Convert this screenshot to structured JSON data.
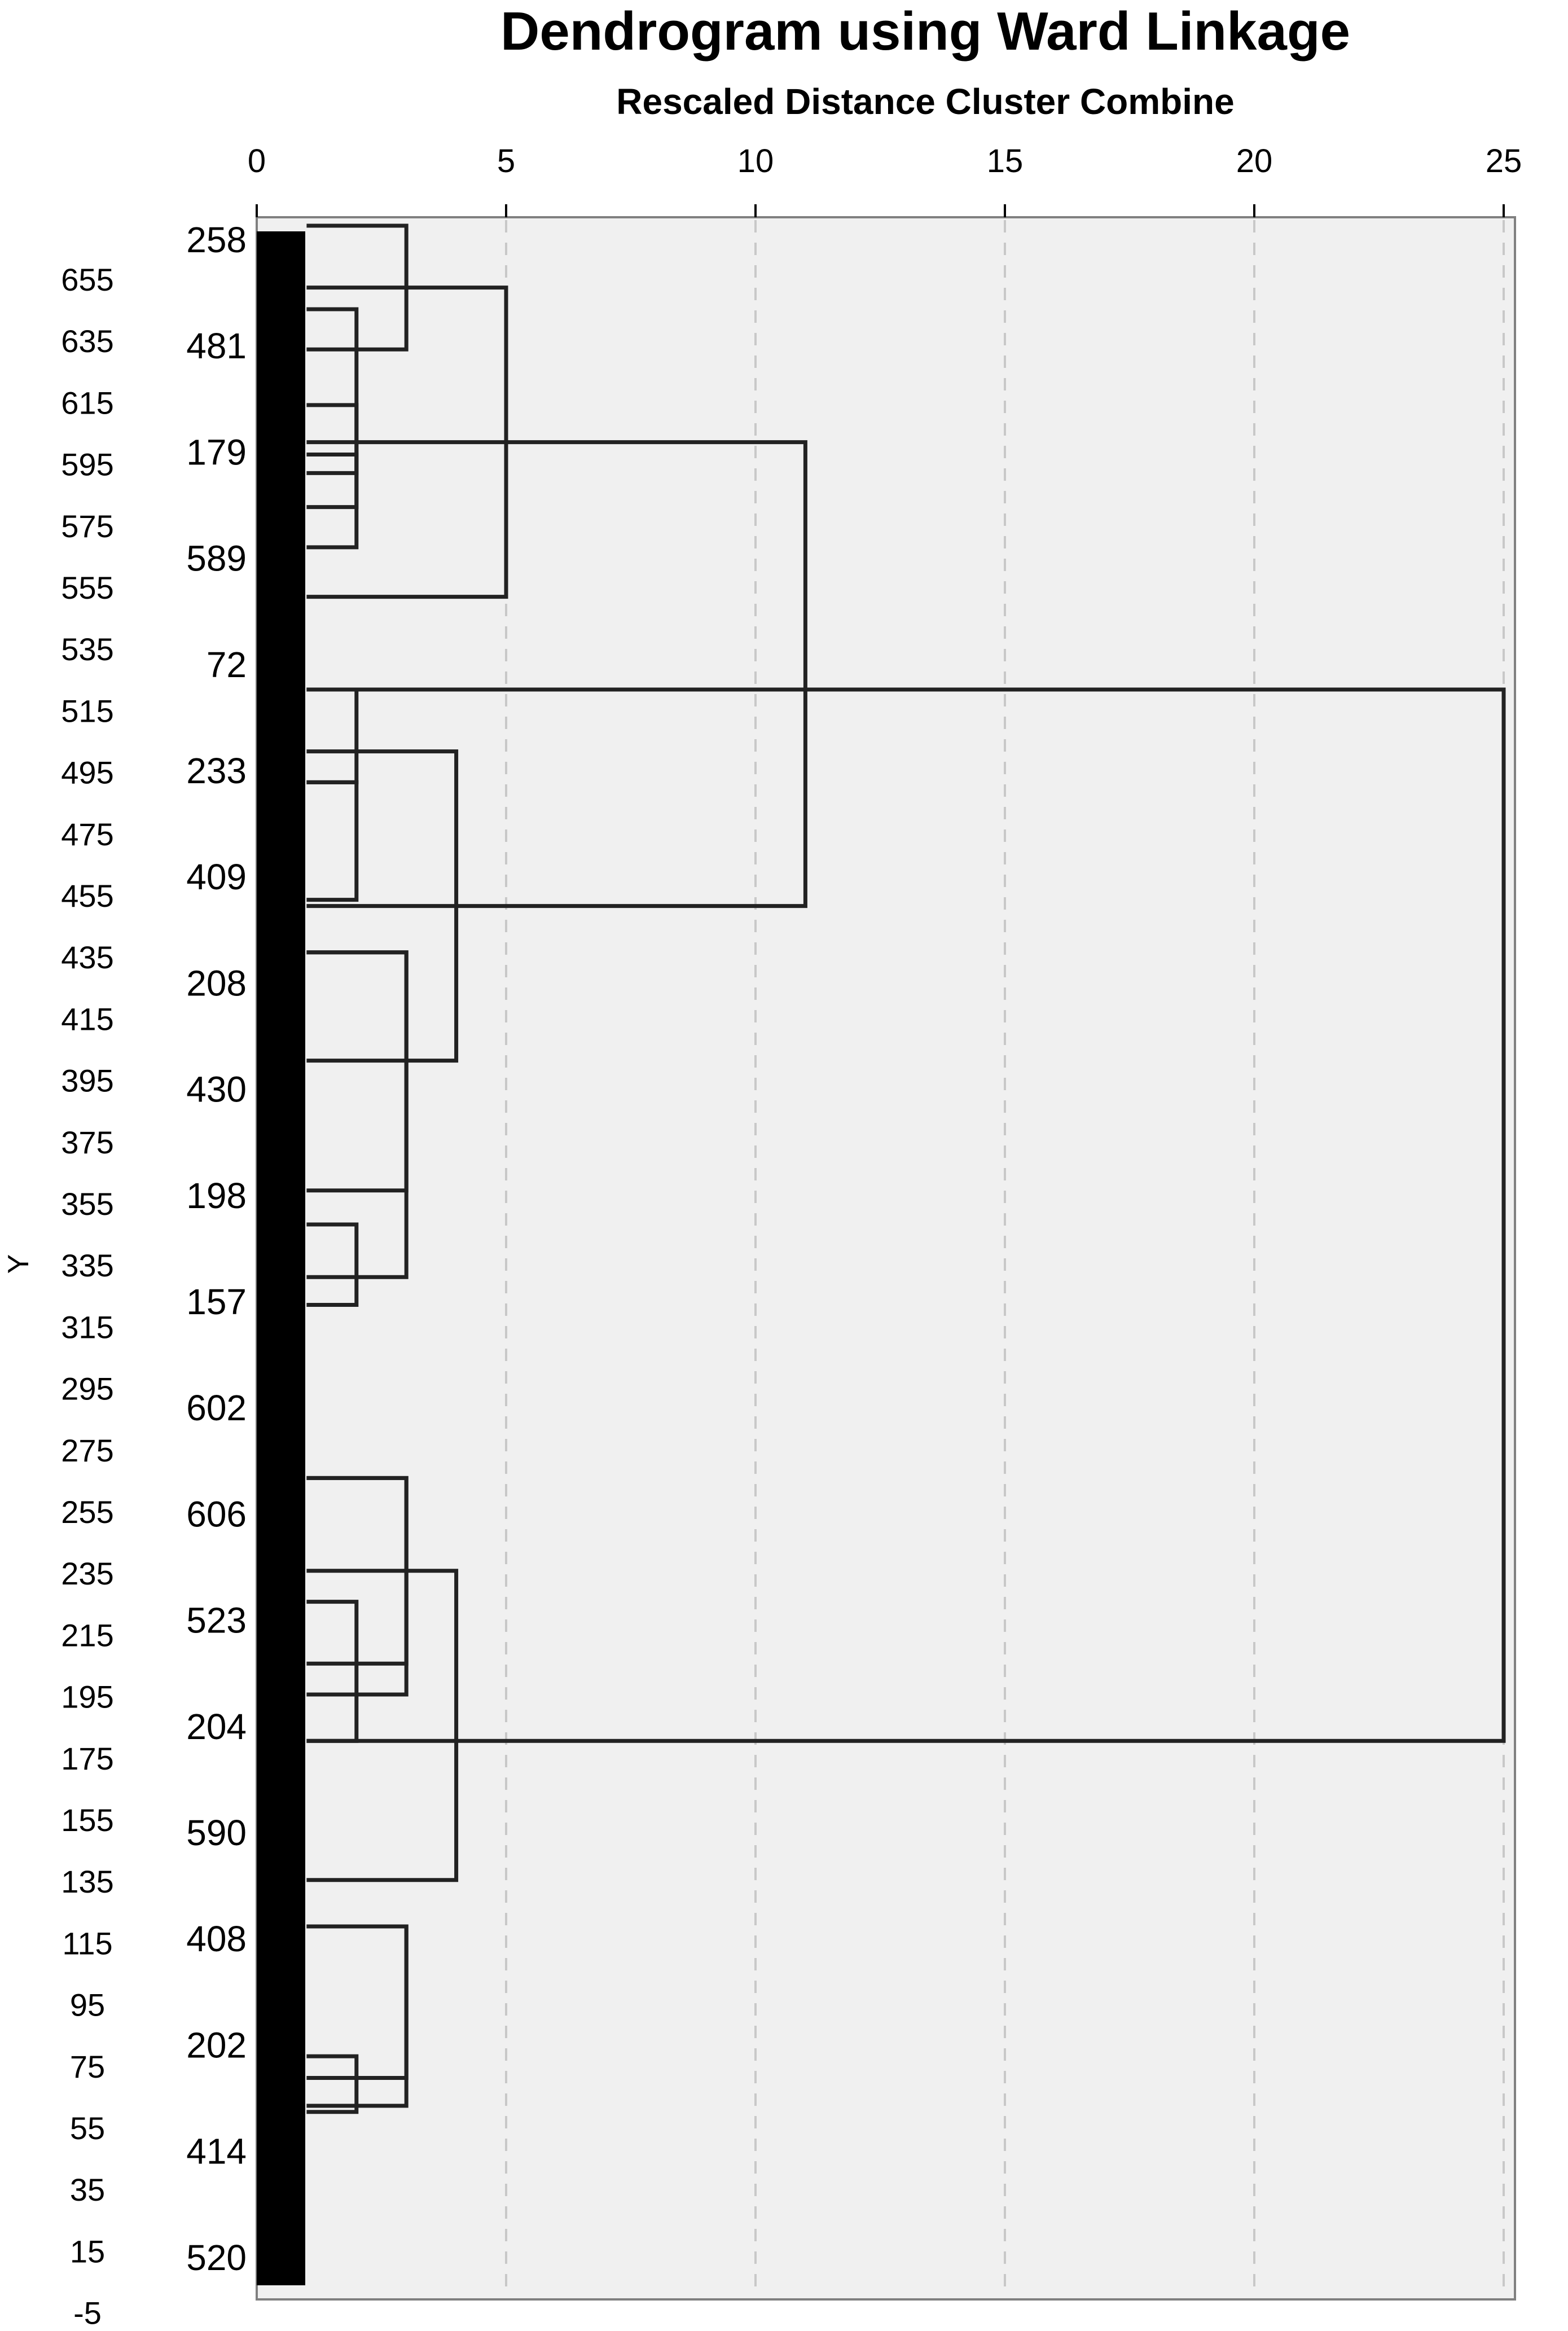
{
  "chart_data": {
    "type": "dendrogram",
    "title": "Dendrogram using Ward Linkage",
    "subtitle": "Rescaled Distance Cluster Combine",
    "ylabel": "Y",
    "xlim": [
      0,
      25
    ],
    "x_ticks": [
      "0",
      "5",
      "10",
      "15",
      "20",
      "25"
    ],
    "y_ticks": [
      "655",
      "635",
      "615",
      "595",
      "575",
      "555",
      "535",
      "515",
      "495",
      "475",
      "455",
      "435",
      "415",
      "395",
      "375",
      "355",
      "335",
      "315",
      "295",
      "275",
      "255",
      "235",
      "215",
      "195",
      "175",
      "155",
      "135",
      "115",
      "95",
      "75",
      "55",
      "35",
      "15",
      "-5"
    ],
    "leaf_labels": [
      "258",
      "481",
      "179",
      "589",
      "72",
      "233",
      "409",
      "208",
      "430",
      "198",
      "157",
      "602",
      "606",
      "523",
      "204",
      "590",
      "408",
      "202",
      "414",
      "520"
    ],
    "grid": true,
    "merges": [
      {
        "height": 2,
        "y1": 597,
        "y2": 564
      },
      {
        "height": 2,
        "y1": 581,
        "y2": 551
      },
      {
        "height": 2,
        "y1": 628,
        "y2": 575
      },
      {
        "height": 3,
        "y1": 655,
        "y2": 615
      },
      {
        "height": 5,
        "y1": 635,
        "y2": 535
      },
      {
        "height": 2,
        "y1": 505,
        "y2": 475
      },
      {
        "height": 2,
        "y1": 475,
        "y2": 437
      },
      {
        "height": 3,
        "y1": 420,
        "y2": 343
      },
      {
        "height": 2,
        "y1": 332,
        "y2": 306
      },
      {
        "height": 3,
        "y1": 420,
        "y2": 315
      },
      {
        "height": 4,
        "y1": 485,
        "y2": 385
      },
      {
        "height": 11,
        "y1": 585,
        "y2": 435
      },
      {
        "height": 3,
        "y1": 250,
        "y2": 180
      },
      {
        "height": 2,
        "y1": 210,
        "y2": 165
      },
      {
        "height": 3,
        "y1": 250,
        "y2": 190
      },
      {
        "height": 4,
        "y1": 220,
        "y2": 120
      },
      {
        "height": 3,
        "y1": 105,
        "y2": 47
      },
      {
        "height": 2,
        "y1": 63,
        "y2": 45
      },
      {
        "height": 3,
        "y1": 105,
        "y2": 56
      },
      {
        "height": 25,
        "y1": 505,
        "y2": 165
      }
    ]
  }
}
